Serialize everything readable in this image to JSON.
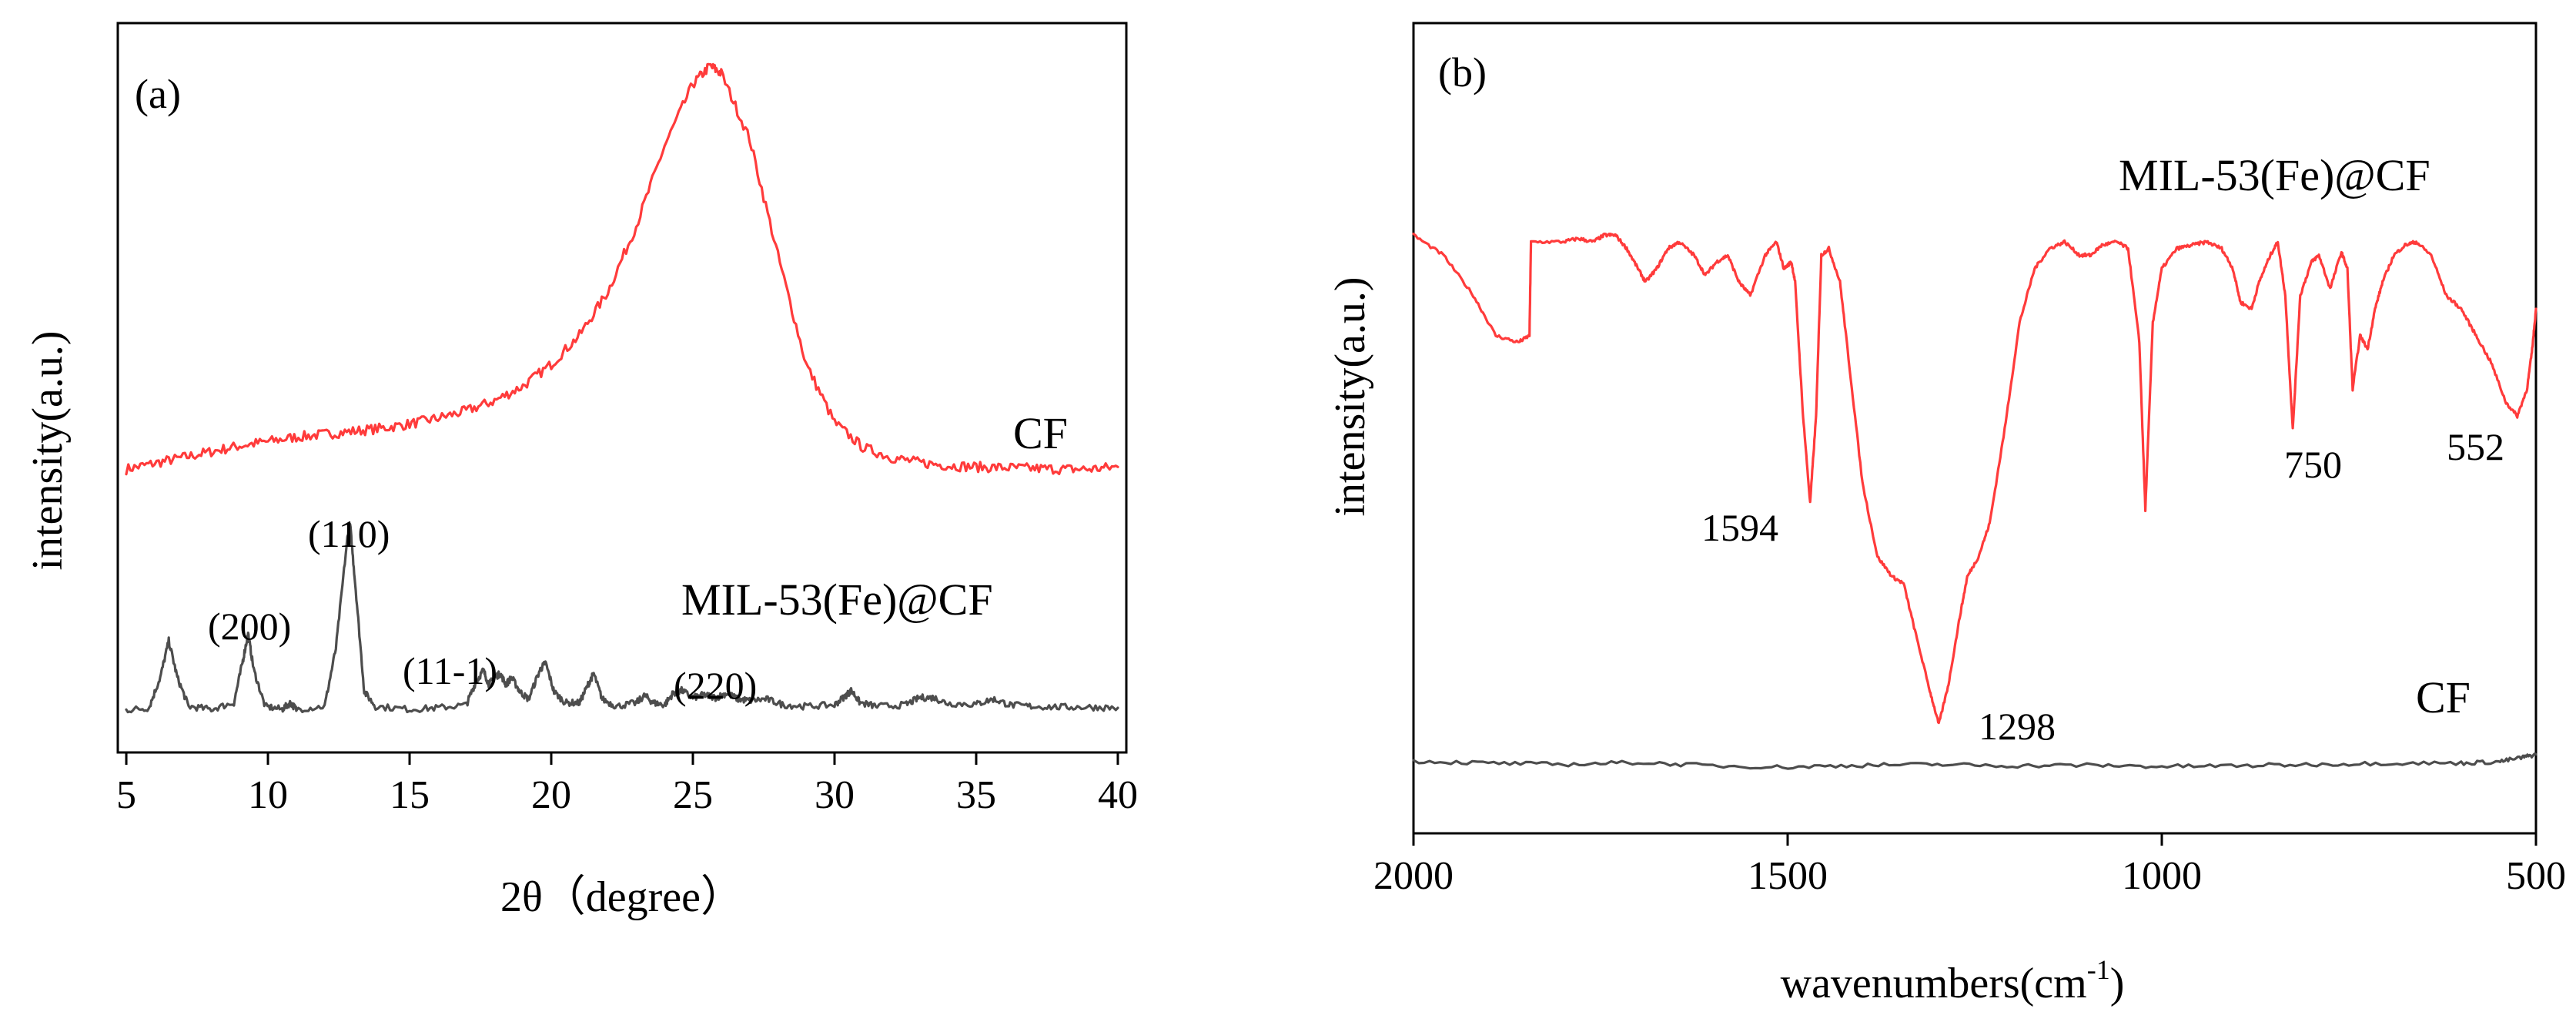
{
  "chart_data": [
    {
      "type": "line",
      "panel_label": "(a)",
      "xlabel": "2θ（degree）",
      "ylabel": "intensity(a.u.)",
      "xlim": [
        4.7,
        40.3
      ],
      "ylim": [
        0,
        100
      ],
      "x_ticks": [
        5,
        10,
        15,
        20,
        25,
        30,
        35,
        40
      ],
      "y_ticks_shown": false,
      "grid": false,
      "legend": "none",
      "series": [
        {
          "name": "CF",
          "color": "#ff3b3b",
          "points": [
            [
              5,
              36.6
            ],
            [
              6,
              37.4
            ],
            [
              7,
              38.2
            ],
            [
              8,
              39.0
            ],
            [
              9,
              39.8
            ],
            [
              10,
              40.4
            ],
            [
              11,
              41.0
            ],
            [
              12,
              41.4
            ],
            [
              13,
              41.8
            ],
            [
              14,
              42.2
            ],
            [
              15,
              42.8
            ],
            [
              16,
              43.6
            ],
            [
              17,
              44.6
            ],
            [
              18,
              46.0
            ],
            [
              19,
              48.0
            ],
            [
              20,
              51.0
            ],
            [
              21,
              55.0
            ],
            [
              22,
              61.0
            ],
            [
              23,
              70.0
            ],
            [
              24,
              81.0
            ],
            [
              25,
              89.5
            ],
            [
              25.6,
              92.0
            ],
            [
              26,
              91.0
            ],
            [
              27,
              82.0
            ],
            [
              28,
              66.0
            ],
            [
              29,
              51.0
            ],
            [
              30,
              43.0
            ],
            [
              31,
              39.6
            ],
            [
              32,
              38.2
            ],
            [
              33,
              37.5
            ],
            [
              34,
              37.1
            ],
            [
              35,
              36.9
            ],
            [
              36,
              36.8
            ],
            [
              37,
              36.7
            ],
            [
              38,
              36.6
            ],
            [
              39,
              36.6
            ],
            [
              40,
              36.9
            ]
          ]
        },
        {
          "name": "MIL-53(Fe)@CF",
          "color": "#4d4d4d",
          "points": [
            [
              5,
              3.5
            ],
            [
              5.8,
              3.8
            ],
            [
              6.2,
              8.0
            ],
            [
              6.5,
              13.0
            ],
            [
              6.8,
              8.0
            ],
            [
              7.2,
              4.0
            ],
            [
              8,
              3.6
            ],
            [
              8.8,
              4.5
            ],
            [
              9.1,
              10.0
            ],
            [
              9.3,
              14.0
            ],
            [
              9.5,
              9.0
            ],
            [
              9.9,
              4.0
            ],
            [
              10.5,
              3.6
            ],
            [
              10.8,
              4.5
            ],
            [
              11.0,
              3.6
            ],
            [
              12.0,
              4.0
            ],
            [
              12.4,
              12.0
            ],
            [
              12.8,
              27.0
            ],
            [
              12.9,
              29.0
            ],
            [
              13.1,
              20.0
            ],
            [
              13.4,
              6.0
            ],
            [
              13.8,
              4.0
            ],
            [
              15,
              3.6
            ],
            [
              16,
              3.8
            ],
            [
              17,
              4.2
            ],
            [
              17.3,
              7.0
            ],
            [
              17.6,
              9.0
            ],
            [
              17.8,
              7.0
            ],
            [
              18.0,
              8.0
            ],
            [
              18.2,
              8.5
            ],
            [
              18.4,
              7.0
            ],
            [
              18.6,
              8.0
            ],
            [
              18.9,
              6.0
            ],
            [
              19.2,
              5.0
            ],
            [
              19.6,
              9.0
            ],
            [
              19.8,
              10.0
            ],
            [
              20.1,
              6.0
            ],
            [
              20.5,
              4.5
            ],
            [
              21.0,
              4.5
            ],
            [
              21.3,
              7.0
            ],
            [
              21.5,
              8.5
            ],
            [
              21.8,
              5.0
            ],
            [
              22.3,
              4.0
            ],
            [
              23.0,
              4.5
            ],
            [
              23.3,
              5.5
            ],
            [
              23.6,
              4.5
            ],
            [
              24.0,
              4.2
            ],
            [
              24.3,
              5.8
            ],
            [
              24.6,
              6.2
            ],
            [
              25.0,
              5.2
            ],
            [
              25.4,
              5.6
            ],
            [
              25.8,
              5.2
            ],
            [
              26.2,
              5.8
            ],
            [
              26.6,
              5.0
            ],
            [
              27.0,
              4.8
            ],
            [
              27.6,
              5.0
            ],
            [
              28.2,
              4.2
            ],
            [
              29,
              4.0
            ],
            [
              30.0,
              4.2
            ],
            [
              30.4,
              5.5
            ],
            [
              30.6,
              6.2
            ],
            [
              30.9,
              4.5
            ],
            [
              31.5,
              4.0
            ],
            [
              32.5,
              4.2
            ],
            [
              33.0,
              5.2
            ],
            [
              33.5,
              5.2
            ],
            [
              34.0,
              4.4
            ],
            [
              35.0,
              4.3
            ],
            [
              35.6,
              5.0
            ],
            [
              36.2,
              4.2
            ],
            [
              37,
              4.0
            ],
            [
              38,
              3.9
            ],
            [
              39,
              3.9
            ],
            [
              40,
              3.8
            ]
          ]
        }
      ],
      "annotations": [
        {
          "text": "(200)",
          "x": 9.3
        },
        {
          "text": "(110)",
          "x": 12.9
        },
        {
          "text": "(11-1)",
          "x": 17.7
        },
        {
          "text": "(220)",
          "x": 26.0
        },
        {
          "text": "CF",
          "series": "CF"
        },
        {
          "text": "MIL-53(Fe)@CF",
          "series": "MIL-53(Fe)@CF"
        }
      ]
    },
    {
      "type": "line",
      "panel_label": "(b)",
      "xlabel": "wavenumbers(cm",
      "xlabel_superscript": "-1",
      "xlabel_suffix": ")",
      "ylabel": "intensity(a.u.)",
      "xlim": [
        2000,
        500
      ],
      "x_reversed": true,
      "ylim": [
        0,
        100
      ],
      "x_ticks": [
        2000,
        1500,
        1000,
        500
      ],
      "y_ticks_shown": false,
      "grid": false,
      "legend": "none",
      "series": [
        {
          "name": "MIL-53(Fe)@CF",
          "color": "#ff3b3b",
          "points": [
            [
              2000,
              81
            ],
            [
              1960,
              78
            ],
            [
              1920,
              72
            ],
            [
              1890,
              66
            ],
            [
              1860,
              65
            ],
            [
              1845,
              66
            ],
            [
              1843,
              80
            ],
            [
              1800,
              80
            ],
            [
              1780,
              80.5
            ],
            [
              1760,
              80
            ],
            [
              1745,
              81
            ],
            [
              1730,
              81
            ],
            [
              1715,
              79
            ],
            [
              1700,
              76
            ],
            [
              1690,
              74
            ],
            [
              1675,
              76
            ],
            [
              1660,
              79
            ],
            [
              1645,
              80
            ],
            [
              1625,
              78
            ],
            [
              1610,
              75
            ],
            [
              1595,
              77
            ],
            [
              1580,
              78
            ],
            [
              1565,
              74
            ],
            [
              1550,
              72
            ],
            [
              1530,
              78
            ],
            [
              1515,
              80
            ],
            [
              1505,
              76
            ],
            [
              1495,
              77
            ],
            [
              1490,
              74
            ],
            [
              1480,
              55
            ],
            [
              1470,
              41
            ],
            [
              1462,
              54
            ],
            [
              1455,
              78
            ],
            [
              1445,
              79
            ],
            [
              1430,
              74
            ],
            [
              1420,
              64
            ],
            [
              1400,
              44
            ],
            [
              1380,
              33
            ],
            [
              1360,
              30
            ],
            [
              1345,
              29
            ],
            [
              1330,
              22
            ],
            [
              1310,
              13
            ],
            [
              1298,
              8
            ],
            [
              1285,
              14
            ],
            [
              1270,
              24
            ],
            [
              1260,
              30
            ],
            [
              1245,
              33
            ],
            [
              1230,
              38
            ],
            [
              1210,
              52
            ],
            [
              1190,
              68
            ],
            [
              1170,
              76
            ],
            [
              1150,
              79
            ],
            [
              1130,
              80
            ],
            [
              1110,
              78
            ],
            [
              1095,
              78
            ],
            [
              1080,
              79.5
            ],
            [
              1060,
              80
            ],
            [
              1045,
              79
            ],
            [
              1030,
              65
            ],
            [
              1022,
              40
            ],
            [
              1012,
              68
            ],
            [
              1000,
              76
            ],
            [
              980,
              79
            ],
            [
              960,
              79.5
            ],
            [
              940,
              80
            ],
            [
              920,
              79
            ],
            [
              905,
              76
            ],
            [
              895,
              71
            ],
            [
              880,
              70
            ],
            [
              870,
              74
            ],
            [
              855,
              78
            ],
            [
              845,
              80
            ],
            [
              835,
              72
            ],
            [
              825,
              52
            ],
            [
              815,
              72
            ],
            [
              800,
              77
            ],
            [
              790,
              78
            ],
            [
              775,
              73
            ],
            [
              760,
              78.5
            ],
            [
              752,
              76
            ],
            [
              745,
              58
            ],
            [
              735,
              66
            ],
            [
              725,
              64
            ],
            [
              715,
              70
            ],
            [
              705,
              74
            ],
            [
              690,
              78
            ],
            [
              675,
              79.5
            ],
            [
              660,
              80
            ],
            [
              640,
              78
            ],
            [
              620,
              72
            ],
            [
              600,
              70
            ],
            [
              580,
              66
            ],
            [
              560,
              62
            ],
            [
              540,
              56
            ],
            [
              525,
              54
            ],
            [
              512,
              58
            ],
            [
              505,
              64
            ],
            [
              500,
              70
            ]
          ]
        },
        {
          "name": "CF",
          "color": "#4d4d4d",
          "points": [
            [
              2000,
              2.5
            ],
            [
              1900,
              2.2
            ],
            [
              1800,
              2.0
            ],
            [
              1700,
              2.3
            ],
            [
              1600,
              1.8
            ],
            [
              1500,
              1.6
            ],
            [
              1400,
              1.9
            ],
            [
              1300,
              2.0
            ],
            [
              1200,
              1.8
            ],
            [
              1100,
              1.9
            ],
            [
              1000,
              1.7
            ],
            [
              900,
              1.8
            ],
            [
              800,
              2.0
            ],
            [
              700,
              2.2
            ],
            [
              600,
              2.2
            ],
            [
              550,
              2.4
            ],
            [
              520,
              3.0
            ],
            [
              500,
              3.5
            ]
          ]
        }
      ],
      "annotations": [
        {
          "text": "1594"
        },
        {
          "text": "1298"
        },
        {
          "text": "750"
        },
        {
          "text": "552"
        },
        {
          "text": "MIL-53(Fe)@CF",
          "series": "MIL-53(Fe)@CF"
        },
        {
          "text": "CF",
          "series": "CF"
        }
      ]
    }
  ]
}
